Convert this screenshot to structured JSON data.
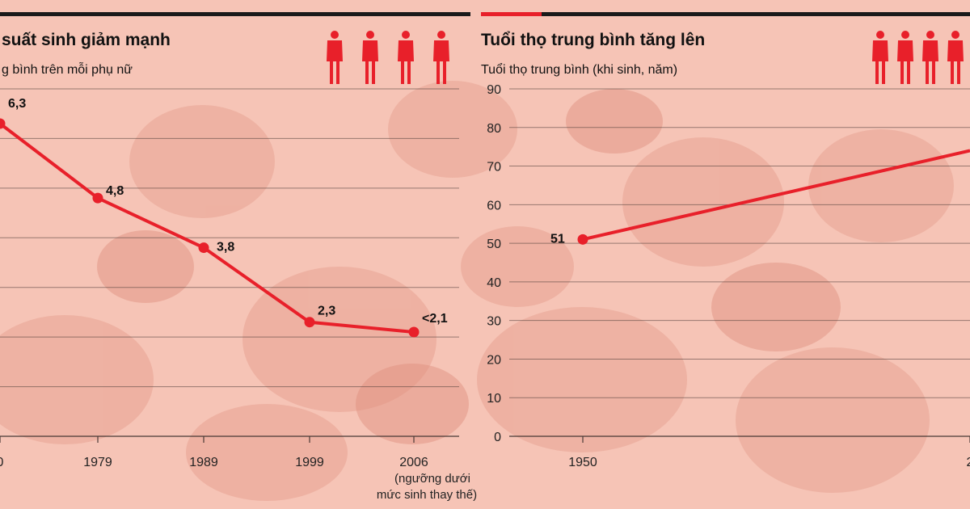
{
  "colors": {
    "accent": "#e8202a",
    "rule": "#1a1a1a",
    "grid": "#4a3a36",
    "background": "#f6c4b6"
  },
  "icons": {
    "person": "person-icon"
  },
  "chart_data": [
    {
      "type": "line",
      "title": "suất sinh giảm mạnh",
      "subtitle": "g bình trên mỗi phụ nữ",
      "categories": [
        "0",
        "1979",
        "1989",
        "1999",
        "2006"
      ],
      "values": [
        6.3,
        4.8,
        3.8,
        2.3,
        2.1
      ],
      "point_labels": [
        "6,3",
        "4,8",
        "3,8",
        "2,3",
        "<2,1"
      ],
      "note": [
        "(ngưỡng dưới",
        "mức sinh thay thế)"
      ],
      "ylim": [
        0,
        7
      ],
      "grid": true,
      "icon_count": 4
    },
    {
      "type": "line",
      "title": "Tuổi thọ trung bình tăng lên",
      "subtitle": "Tuổi thọ trung bình (khi sinh, năm)",
      "categories": [
        "1950",
        "2"
      ],
      "values": [
        51,
        74
      ],
      "point_labels": [
        "51"
      ],
      "y_ticks": [
        "0",
        "10",
        "20",
        "30",
        "40",
        "50",
        "60",
        "70",
        "80",
        "90"
      ],
      "ylim": [
        0,
        90
      ],
      "grid": true,
      "icon_count": 4
    }
  ]
}
